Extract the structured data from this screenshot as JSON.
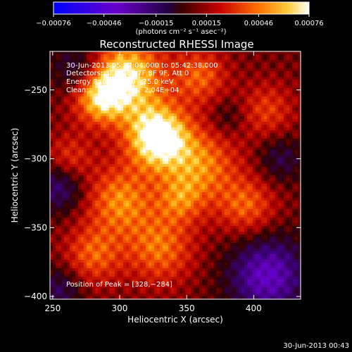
{
  "chart_data": {
    "type": "heatmap",
    "title": "Reconstructed RHESSI Image",
    "xlabel": "Heliocentric X (arcsec)",
    "ylabel": "Heliocentric Y (arcsec)",
    "xlim": [
      248,
      435
    ],
    "ylim": [
      -402,
      -222
    ],
    "x_ticks": [
      250,
      300,
      350,
      400
    ],
    "y_ticks": [
      -400,
      -350,
      -300,
      -250
    ],
    "x_tick_labels": [
      "250",
      "300",
      "350",
      "400"
    ],
    "y_tick_labels": [
      "−400",
      "−350",
      "−300",
      "−250"
    ],
    "colorbar": {
      "range": [
        -0.00076,
        0.00076
      ],
      "ticks": [
        -0.00076,
        -0.00046,
        -0.00015,
        0.00015,
        0.00046,
        0.00076
      ],
      "tick_labels": [
        "−0.00076",
        "−0.00046",
        "−0.00015",
        "0.00015",
        "0.00046",
        "0.00076"
      ],
      "units": "(photons cm⁻² s⁻¹ asec⁻²)"
    },
    "annotations": {
      "time_range": "30-Jun-2013 05:37:04.000 to 05:42:38.000",
      "detectors": "Detectors: 3F 5F 6F 7F 8F 9F, Att 0",
      "energy_range": "Energy Range: 12.0 - 25.0 keV",
      "clean_counts": "Clean     Total counts: 2.04E+04",
      "peak_position": "Position of Peak = [328,−284]"
    },
    "peak": {
      "x": 328,
      "y": -284
    },
    "blobs": [
      {
        "x": 328,
        "y": -284,
        "amp": 1.0,
        "s": 16
      },
      {
        "x": 305,
        "y": -240,
        "amp": 0.8,
        "s": 20
      },
      {
        "x": 285,
        "y": -255,
        "amp": 0.65,
        "s": 14
      },
      {
        "x": 360,
        "y": -305,
        "amp": 0.55,
        "s": 20
      },
      {
        "x": 300,
        "y": -330,
        "amp": 0.55,
        "s": 18
      },
      {
        "x": 330,
        "y": -365,
        "amp": 0.5,
        "s": 18
      },
      {
        "x": 280,
        "y": -370,
        "amp": 0.45,
        "s": 15
      },
      {
        "x": 395,
        "y": -335,
        "amp": 0.45,
        "s": 15
      },
      {
        "x": 360,
        "y": -240,
        "amp": 0.45,
        "s": 14
      },
      {
        "x": 262,
        "y": -300,
        "amp": 0.35,
        "s": 12
      },
      {
        "x": 410,
        "y": -265,
        "amp": 0.35,
        "s": 14
      },
      {
        "x": 345,
        "y": -330,
        "amp": 0.35,
        "s": 12
      },
      {
        "x": 270,
        "y": -235,
        "amp": -0.4,
        "s": 14
      },
      {
        "x": 255,
        "y": -320,
        "amp": -0.45,
        "s": 13
      },
      {
        "x": 410,
        "y": -385,
        "amp": -0.7,
        "s": 20
      },
      {
        "x": 255,
        "y": -395,
        "amp": -0.35,
        "s": 12
      },
      {
        "x": 420,
        "y": -300,
        "amp": -0.3,
        "s": 12
      },
      {
        "x": 380,
        "y": -270,
        "amp": -0.2,
        "s": 10
      }
    ]
  },
  "footer_timestamp": "30-Jun-2013 00:43"
}
